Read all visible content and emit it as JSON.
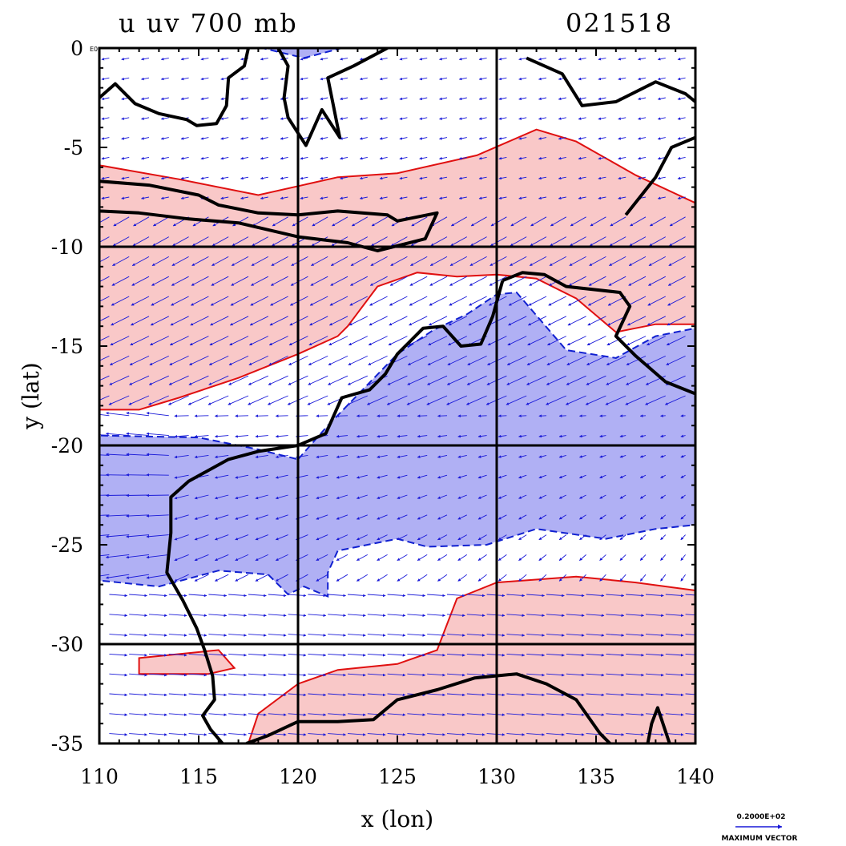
{
  "title_left": "u uv 700 mb",
  "title_right": "021518",
  "xlabel": "x (lon)",
  "ylabel": "y (lat)",
  "corner_label": "E0",
  "x_ticks": [
    "110",
    "115",
    "120",
    "125",
    "130",
    "135",
    "140"
  ],
  "y_ticks": [
    "0",
    "-5",
    "-10",
    "-15",
    "-20",
    "-25",
    "-30",
    "-35"
  ],
  "vector_key": {
    "magnitude_label": "0.2000E+02",
    "caption": "MAXIMUM VECTOR"
  },
  "colors": {
    "positive_fill": "#f9c8c8",
    "positive_contour": "#e01010",
    "negative_fill": "#b0b0f4",
    "negative_contour": "#1020d0",
    "vector": "#1a1ad8",
    "coast": "#000000"
  },
  "chart_data": {
    "type": "map",
    "xlim": [
      110,
      140
    ],
    "ylim": [
      -35,
      0
    ],
    "grid_lon": [
      120,
      130
    ],
    "grid_lat": [
      -10,
      -20,
      -30
    ],
    "x_tick_values": [
      110,
      115,
      120,
      125,
      130,
      135,
      140
    ],
    "y_tick_values": [
      0,
      -5,
      -10,
      -15,
      -20,
      -25,
      -30,
      -35
    ],
    "vector_grid_spacing_deg": 1.0,
    "positive_regions": [
      [
        [
          110,
          -5.9
        ],
        [
          114,
          -6.6
        ],
        [
          118,
          -7.4
        ],
        [
          122,
          -6.5
        ],
        [
          125,
          -6.3
        ],
        [
          129,
          -5.4
        ],
        [
          132,
          -4.1
        ],
        [
          134,
          -4.7
        ],
        [
          137,
          -6.4
        ],
        [
          140,
          -7.8
        ],
        [
          140,
          -13.9
        ],
        [
          138,
          -13.9
        ],
        [
          136,
          -14.3
        ],
        [
          134,
          -12.6
        ],
        [
          132,
          -11.6
        ],
        [
          130,
          -11.4
        ],
        [
          128,
          -11.5
        ],
        [
          126,
          -11.3
        ],
        [
          124,
          -12.0
        ],
        [
          122.5,
          -14.0
        ],
        [
          122,
          -14.5
        ],
        [
          120,
          -15.4
        ],
        [
          117,
          -16.6
        ],
        [
          114,
          -17.6
        ],
        [
          112,
          -18.2
        ],
        [
          110,
          -18.2
        ]
      ],
      [
        [
          112,
          -30.7
        ],
        [
          116,
          -30.3
        ],
        [
          116.8,
          -31.2
        ],
        [
          115.5,
          -31.5
        ],
        [
          112,
          -31.5
        ]
      ],
      [
        [
          117.5,
          -35
        ],
        [
          118,
          -33.5
        ],
        [
          120,
          -32.0
        ],
        [
          122,
          -31.3
        ],
        [
          125,
          -31.0
        ],
        [
          127,
          -30.3
        ],
        [
          128,
          -27.7
        ],
        [
          130,
          -26.9
        ],
        [
          134,
          -26.6
        ],
        [
          137,
          -26.9
        ],
        [
          140,
          -27.3
        ],
        [
          140,
          -35
        ]
      ]
    ],
    "negative_regions": [
      [
        [
          120,
          -20.7
        ],
        [
          121.5,
          -19.0
        ],
        [
          125,
          -15.4
        ],
        [
          126.8,
          -14.2
        ],
        [
          128.5,
          -13.4
        ],
        [
          130,
          -12.4
        ],
        [
          131,
          -12.3
        ],
        [
          133.5,
          -15.2
        ],
        [
          136,
          -15.6
        ],
        [
          138,
          -14.5
        ],
        [
          140,
          -14.1
        ],
        [
          140,
          -24.0
        ],
        [
          138,
          -24.2
        ],
        [
          135.5,
          -24.7
        ],
        [
          132,
          -24.2
        ],
        [
          129.5,
          -25.0
        ],
        [
          126.5,
          -25.1
        ],
        [
          125,
          -24.7
        ],
        [
          122,
          -25.3
        ],
        [
          121.5,
          -26.4
        ],
        [
          121.5,
          -27.6
        ],
        [
          120.3,
          -27.1
        ],
        [
          119.5,
          -27.5
        ],
        [
          118.5,
          -26.5
        ],
        [
          116,
          -26.3
        ],
        [
          113,
          -27.1
        ],
        [
          110,
          -26.8
        ],
        [
          110,
          -19.5
        ],
        [
          115,
          -19.6
        ],
        [
          118,
          -20.2
        ]
      ],
      [
        [
          118.2,
          0
        ],
        [
          122.2,
          0
        ],
        [
          120.3,
          -0.5
        ]
      ]
    ],
    "coastlines": [
      [
        [
          110,
          -6.7
        ],
        [
          112.5,
          -6.9
        ],
        [
          115,
          -7.4
        ],
        [
          116,
          -7.9
        ],
        [
          118,
          -8.3
        ],
        [
          120,
          -8.4
        ],
        [
          122,
          -8.2
        ],
        [
          124.5,
          -8.4
        ],
        [
          125,
          -8.7
        ],
        [
          127,
          -8.3
        ],
        [
          126.4,
          -9.6
        ],
        [
          124,
          -10.2
        ],
        [
          122.5,
          -9.8
        ],
        [
          120,
          -9.5
        ],
        [
          117,
          -8.8
        ],
        [
          114.5,
          -8.6
        ],
        [
          112,
          -8.3
        ],
        [
          110,
          -8.2
        ]
      ],
      [
        [
          130.3,
          -11.7
        ],
        [
          131.3,
          -11.3
        ],
        [
          132.4,
          -11.4
        ],
        [
          133.5,
          -12.0
        ],
        [
          136.2,
          -12.3
        ],
        [
          136.7,
          -13.0
        ],
        [
          136,
          -14.5
        ],
        [
          137,
          -15.5
        ],
        [
          138.5,
          -16.8
        ],
        [
          140,
          -17.4
        ]
      ],
      [
        [
          130.3,
          -11.7
        ],
        [
          129.8,
          -13.5
        ],
        [
          129.2,
          -14.9
        ],
        [
          128.2,
          -15.0
        ],
        [
          127.3,
          -14.0
        ],
        [
          126.3,
          -14.1
        ],
        [
          125,
          -15.4
        ],
        [
          124.4,
          -16.4
        ],
        [
          123.6,
          -17.2
        ],
        [
          122.2,
          -17.6
        ],
        [
          121.4,
          -19.4
        ],
        [
          120,
          -20.0
        ],
        [
          118,
          -20.3
        ],
        [
          116.5,
          -20.7
        ],
        [
          114.5,
          -21.8
        ],
        [
          113.6,
          -22.6
        ],
        [
          113.6,
          -24.4
        ],
        [
          113.4,
          -26.4
        ],
        [
          114.2,
          -27.8
        ],
        [
          114.9,
          -29.2
        ],
        [
          115.3,
          -30.3
        ],
        [
          115.7,
          -31.6
        ],
        [
          115.8,
          -32.8
        ],
        [
          115.2,
          -33.6
        ],
        [
          115.6,
          -34.3
        ],
        [
          116.2,
          -35.0
        ]
      ],
      [
        [
          117.4,
          -35.0
        ],
        [
          118.5,
          -34.6
        ],
        [
          120,
          -33.9
        ],
        [
          122,
          -33.9
        ],
        [
          123.8,
          -33.8
        ],
        [
          125,
          -32.8
        ],
        [
          127,
          -32.3
        ],
        [
          128.9,
          -31.7
        ],
        [
          131,
          -31.5
        ],
        [
          132.5,
          -32.0
        ],
        [
          134,
          -32.8
        ],
        [
          135.2,
          -34.5
        ],
        [
          135.7,
          -35.0
        ]
      ],
      [
        [
          137.6,
          -35.0
        ],
        [
          137.8,
          -34.0
        ],
        [
          138.1,
          -33.2
        ],
        [
          138.5,
          -34.4
        ],
        [
          138.7,
          -35.0
        ]
      ],
      [
        [
          110,
          -2.5
        ],
        [
          110.8,
          -1.8
        ],
        [
          111.8,
          -2.8
        ],
        [
          113,
          -3.3
        ],
        [
          114.4,
          -3.6
        ],
        [
          114.9,
          -3.9
        ],
        [
          115.9,
          -3.8
        ],
        [
          116.4,
          -2.9
        ],
        [
          116.5,
          -1.5
        ],
        [
          117.3,
          -0.9
        ],
        [
          117.5,
          0.0
        ]
      ],
      [
        [
          119,
          0.0
        ],
        [
          119.5,
          -0.9
        ],
        [
          119.3,
          -2.5
        ],
        [
          119.5,
          -3.5
        ],
        [
          120.4,
          -4.9
        ],
        [
          121.2,
          -3.1
        ],
        [
          122.1,
          -4.5
        ],
        [
          121.5,
          -1.5
        ],
        [
          122.8,
          -0.9
        ],
        [
          124.5,
          0.0
        ]
      ],
      [
        [
          131.5,
          -0.5
        ],
        [
          133.3,
          -1.3
        ],
        [
          134.3,
          -2.9
        ],
        [
          136,
          -2.7
        ],
        [
          138,
          -1.7
        ],
        [
          139.5,
          -2.3
        ],
        [
          140,
          -2.7
        ]
      ],
      [
        [
          136.5,
          -8.4
        ],
        [
          138,
          -6.5
        ],
        [
          138.8,
          -5.0
        ],
        [
          140,
          -4.5
        ]
      ]
    ]
  }
}
